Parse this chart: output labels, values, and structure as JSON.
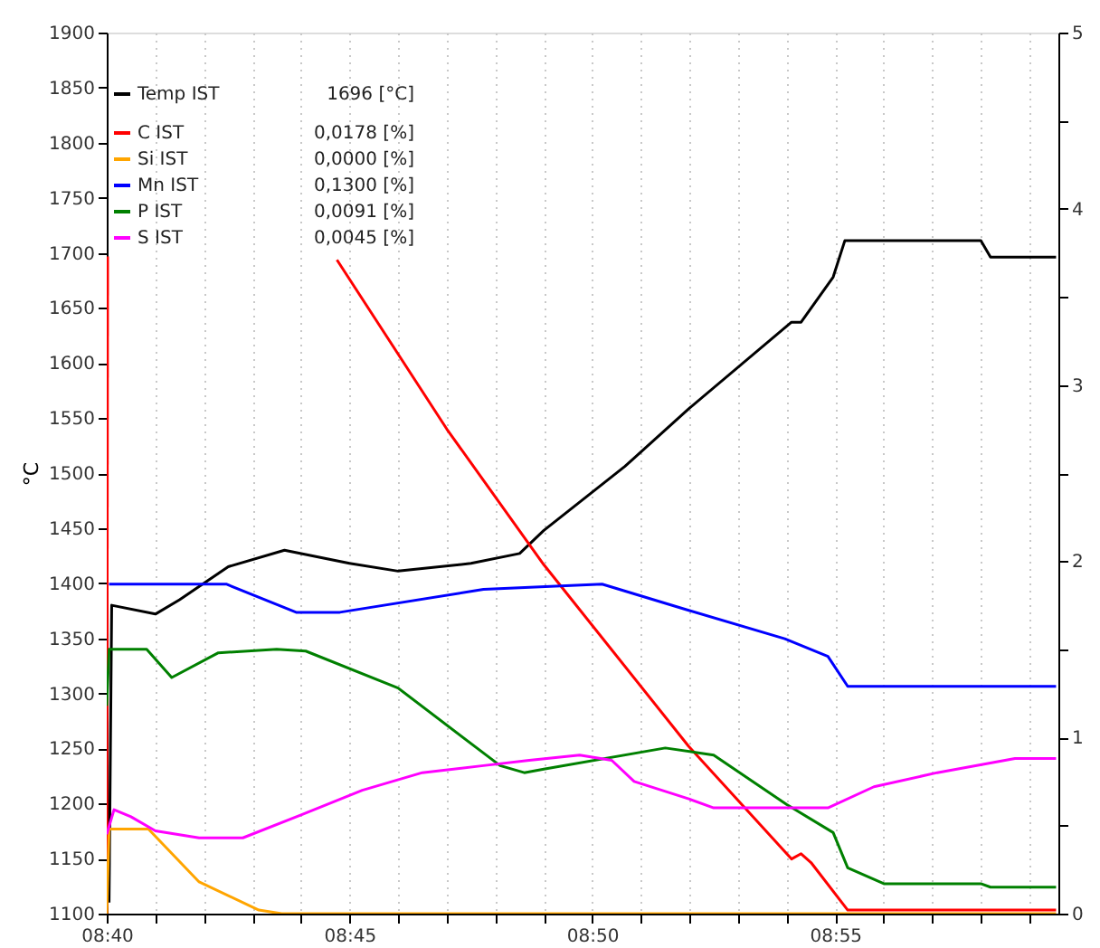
{
  "chart_data": {
    "type": "line",
    "ylabel": "°C",
    "xlim": [
      8.6667,
      8.9933
    ],
    "xticks": [
      {
        "value": 8.6667,
        "label": "08:40"
      },
      {
        "value": 8.6833,
        "label": null
      },
      {
        "value": 8.7,
        "label": null
      },
      {
        "value": 8.7167,
        "label": null
      },
      {
        "value": 8.7333,
        "label": null
      },
      {
        "value": 8.75,
        "label": "08:45"
      },
      {
        "value": 8.7667,
        "label": null
      },
      {
        "value": 8.7833,
        "label": null
      },
      {
        "value": 8.8,
        "label": null
      },
      {
        "value": 8.8167,
        "label": null
      },
      {
        "value": 8.8333,
        "label": "08:50"
      },
      {
        "value": 8.85,
        "label": null
      },
      {
        "value": 8.8667,
        "label": null
      },
      {
        "value": 8.8833,
        "label": null
      },
      {
        "value": 8.9,
        "label": null
      },
      {
        "value": 8.9167,
        "label": "08:55"
      },
      {
        "value": 8.9333,
        "label": null
      },
      {
        "value": 8.95,
        "label": null
      },
      {
        "value": 8.9667,
        "label": null
      },
      {
        "value": 8.9833,
        "label": null
      }
    ],
    "ylim": [
      1100,
      1900
    ],
    "yticks": [
      1100,
      1150,
      1200,
      1250,
      1300,
      1350,
      1400,
      1450,
      1500,
      1550,
      1600,
      1650,
      1700,
      1750,
      1800,
      1850,
      1900
    ],
    "y2lim": [
      0,
      5
    ],
    "y2ticks": [
      0,
      {
        "value": 0.5,
        "label": null
      },
      1,
      {
        "value": 1.5,
        "label": null
      },
      2,
      {
        "value": 2.5,
        "label": null
      },
      3,
      {
        "value": 3.5,
        "label": null
      },
      4,
      {
        "value": 4.5,
        "label": null
      },
      5
    ],
    "grid": "x",
    "legend": "top left",
    "marker": "none",
    "line_style": "solid",
    "annotations": [
      "1696 [°C]",
      "0,0178 [%]",
      "0,0000 [%]",
      "0,1300 [%]",
      "0,0091 [%]",
      "0,0045 [%]"
    ],
    "series": [
      {
        "name": "Temp IST",
        "color": "#000000",
        "x": [
          8.6675,
          8.6684,
          8.6834,
          8.6917,
          8.7084,
          8.7277,
          8.75,
          8.7667,
          8.7917,
          8.8084,
          8.8167,
          8.8445,
          8.8667,
          8.9017,
          8.905,
          8.916,
          8.92,
          8.9667,
          8.97,
          8.9925
        ],
        "values": [
          1110,
          1380,
          1372,
          1385,
          1415,
          1430,
          1418,
          1411,
          1418,
          1427,
          1448,
          1506,
          1559,
          1637,
          1637,
          1678,
          1711,
          1711,
          1696,
          1696
        ]
      },
      {
        "name": "C IST",
        "color": "#ff0000",
        "axis": "y2",
        "x": [
          8.6667,
          8.667,
          8.7,
          8.7457,
          8.7834,
          8.8167,
          8.8664,
          8.9017,
          8.905,
          8.9084,
          8.921,
          8.9925
        ],
        "values": [
          0,
          3.73,
          null,
          3.71,
          2.75,
          1.98,
          0.95,
          0.31,
          0.34,
          0.29,
          0.02,
          0.02
        ]
      },
      {
        "name": "Si IST",
        "color": "#ffa500",
        "axis": "y2",
        "x": [
          8.6667,
          8.6675,
          8.681,
          8.6984,
          8.7189,
          8.7267,
          8.9925
        ],
        "values": [
          0,
          0.48,
          0.48,
          0.18,
          0.02,
          0,
          0
        ]
      },
      {
        "name": "Mn IST",
        "color": "#0000ff",
        "axis": "y2",
        "x": [
          8.6675,
          8.7077,
          8.7317,
          8.7467,
          8.796,
          8.8367,
          8.8667,
          8.8994,
          8.9142,
          8.921,
          8.9925
        ],
        "values": [
          1.87,
          1.87,
          1.71,
          1.71,
          1.84,
          1.87,
          1.72,
          1.56,
          1.46,
          1.29,
          1.29
        ]
      },
      {
        "name": "P IST",
        "color": "#008000",
        "axis": "y2",
        "x": [
          8.6667,
          8.6675,
          8.6804,
          8.689,
          8.705,
          8.725,
          8.735,
          8.7667,
          8.8017,
          8.81,
          8.8167,
          8.8584,
          8.875,
          8.9,
          8.916,
          8.921,
          8.9334,
          8.9667,
          8.97,
          8.9925
        ],
        "values": [
          1.18,
          1.5,
          1.5,
          1.34,
          1.48,
          1.5,
          1.49,
          1.28,
          0.84,
          0.8,
          0.82,
          0.94,
          0.9,
          0.62,
          0.46,
          0.26,
          0.17,
          0.17,
          0.15,
          0.15
        ]
      },
      {
        "name": "S IST",
        "color": "#ff00ff",
        "axis": "y2",
        "x": [
          8.6667,
          8.6692,
          8.675,
          8.6834,
          8.6984,
          8.7134,
          8.7334,
          8.7544,
          8.775,
          8.796,
          8.8117,
          8.829,
          8.84,
          8.8477,
          8.8667,
          8.875,
          8.9142,
          8.93,
          8.9517,
          8.9784,
          8.9925
        ],
        "values": [
          0.45,
          0.59,
          0.55,
          0.47,
          0.43,
          0.43,
          0.56,
          0.7,
          0.8,
          0.84,
          0.87,
          0.9,
          0.87,
          0.75,
          0.65,
          0.6,
          0.6,
          0.72,
          0.8,
          0.88,
          0.88
        ]
      }
    ]
  }
}
